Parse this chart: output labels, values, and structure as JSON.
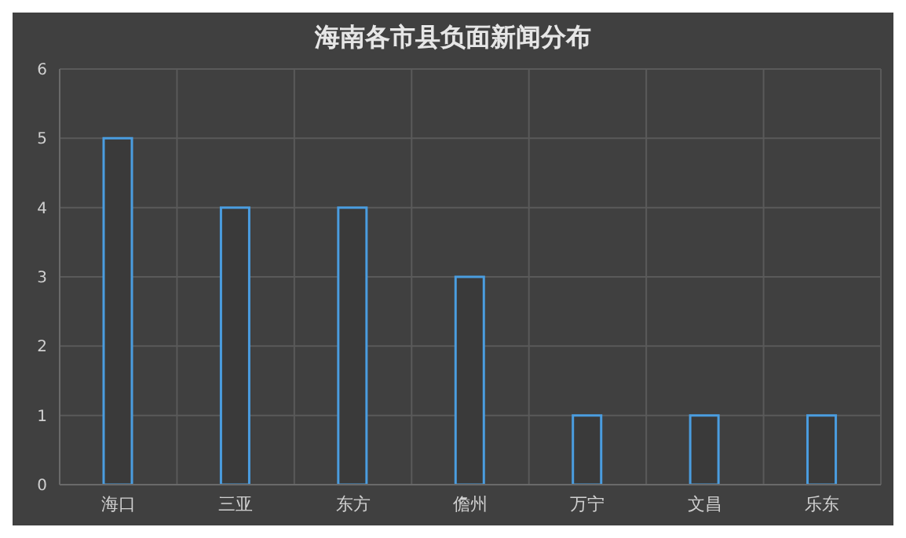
{
  "chart_data": {
    "type": "bar",
    "title": "海南各市县负面新闻分布",
    "categories": [
      "海口",
      "三亚",
      "东方",
      "儋州",
      "万宁",
      "文昌",
      "乐东"
    ],
    "values": [
      5,
      4,
      4,
      3,
      1,
      1,
      1
    ],
    "color": "#4a9de0",
    "ylim": [
      0,
      6
    ],
    "yticks": [
      0,
      1,
      2,
      3,
      4,
      5,
      6
    ],
    "grid": true
  }
}
